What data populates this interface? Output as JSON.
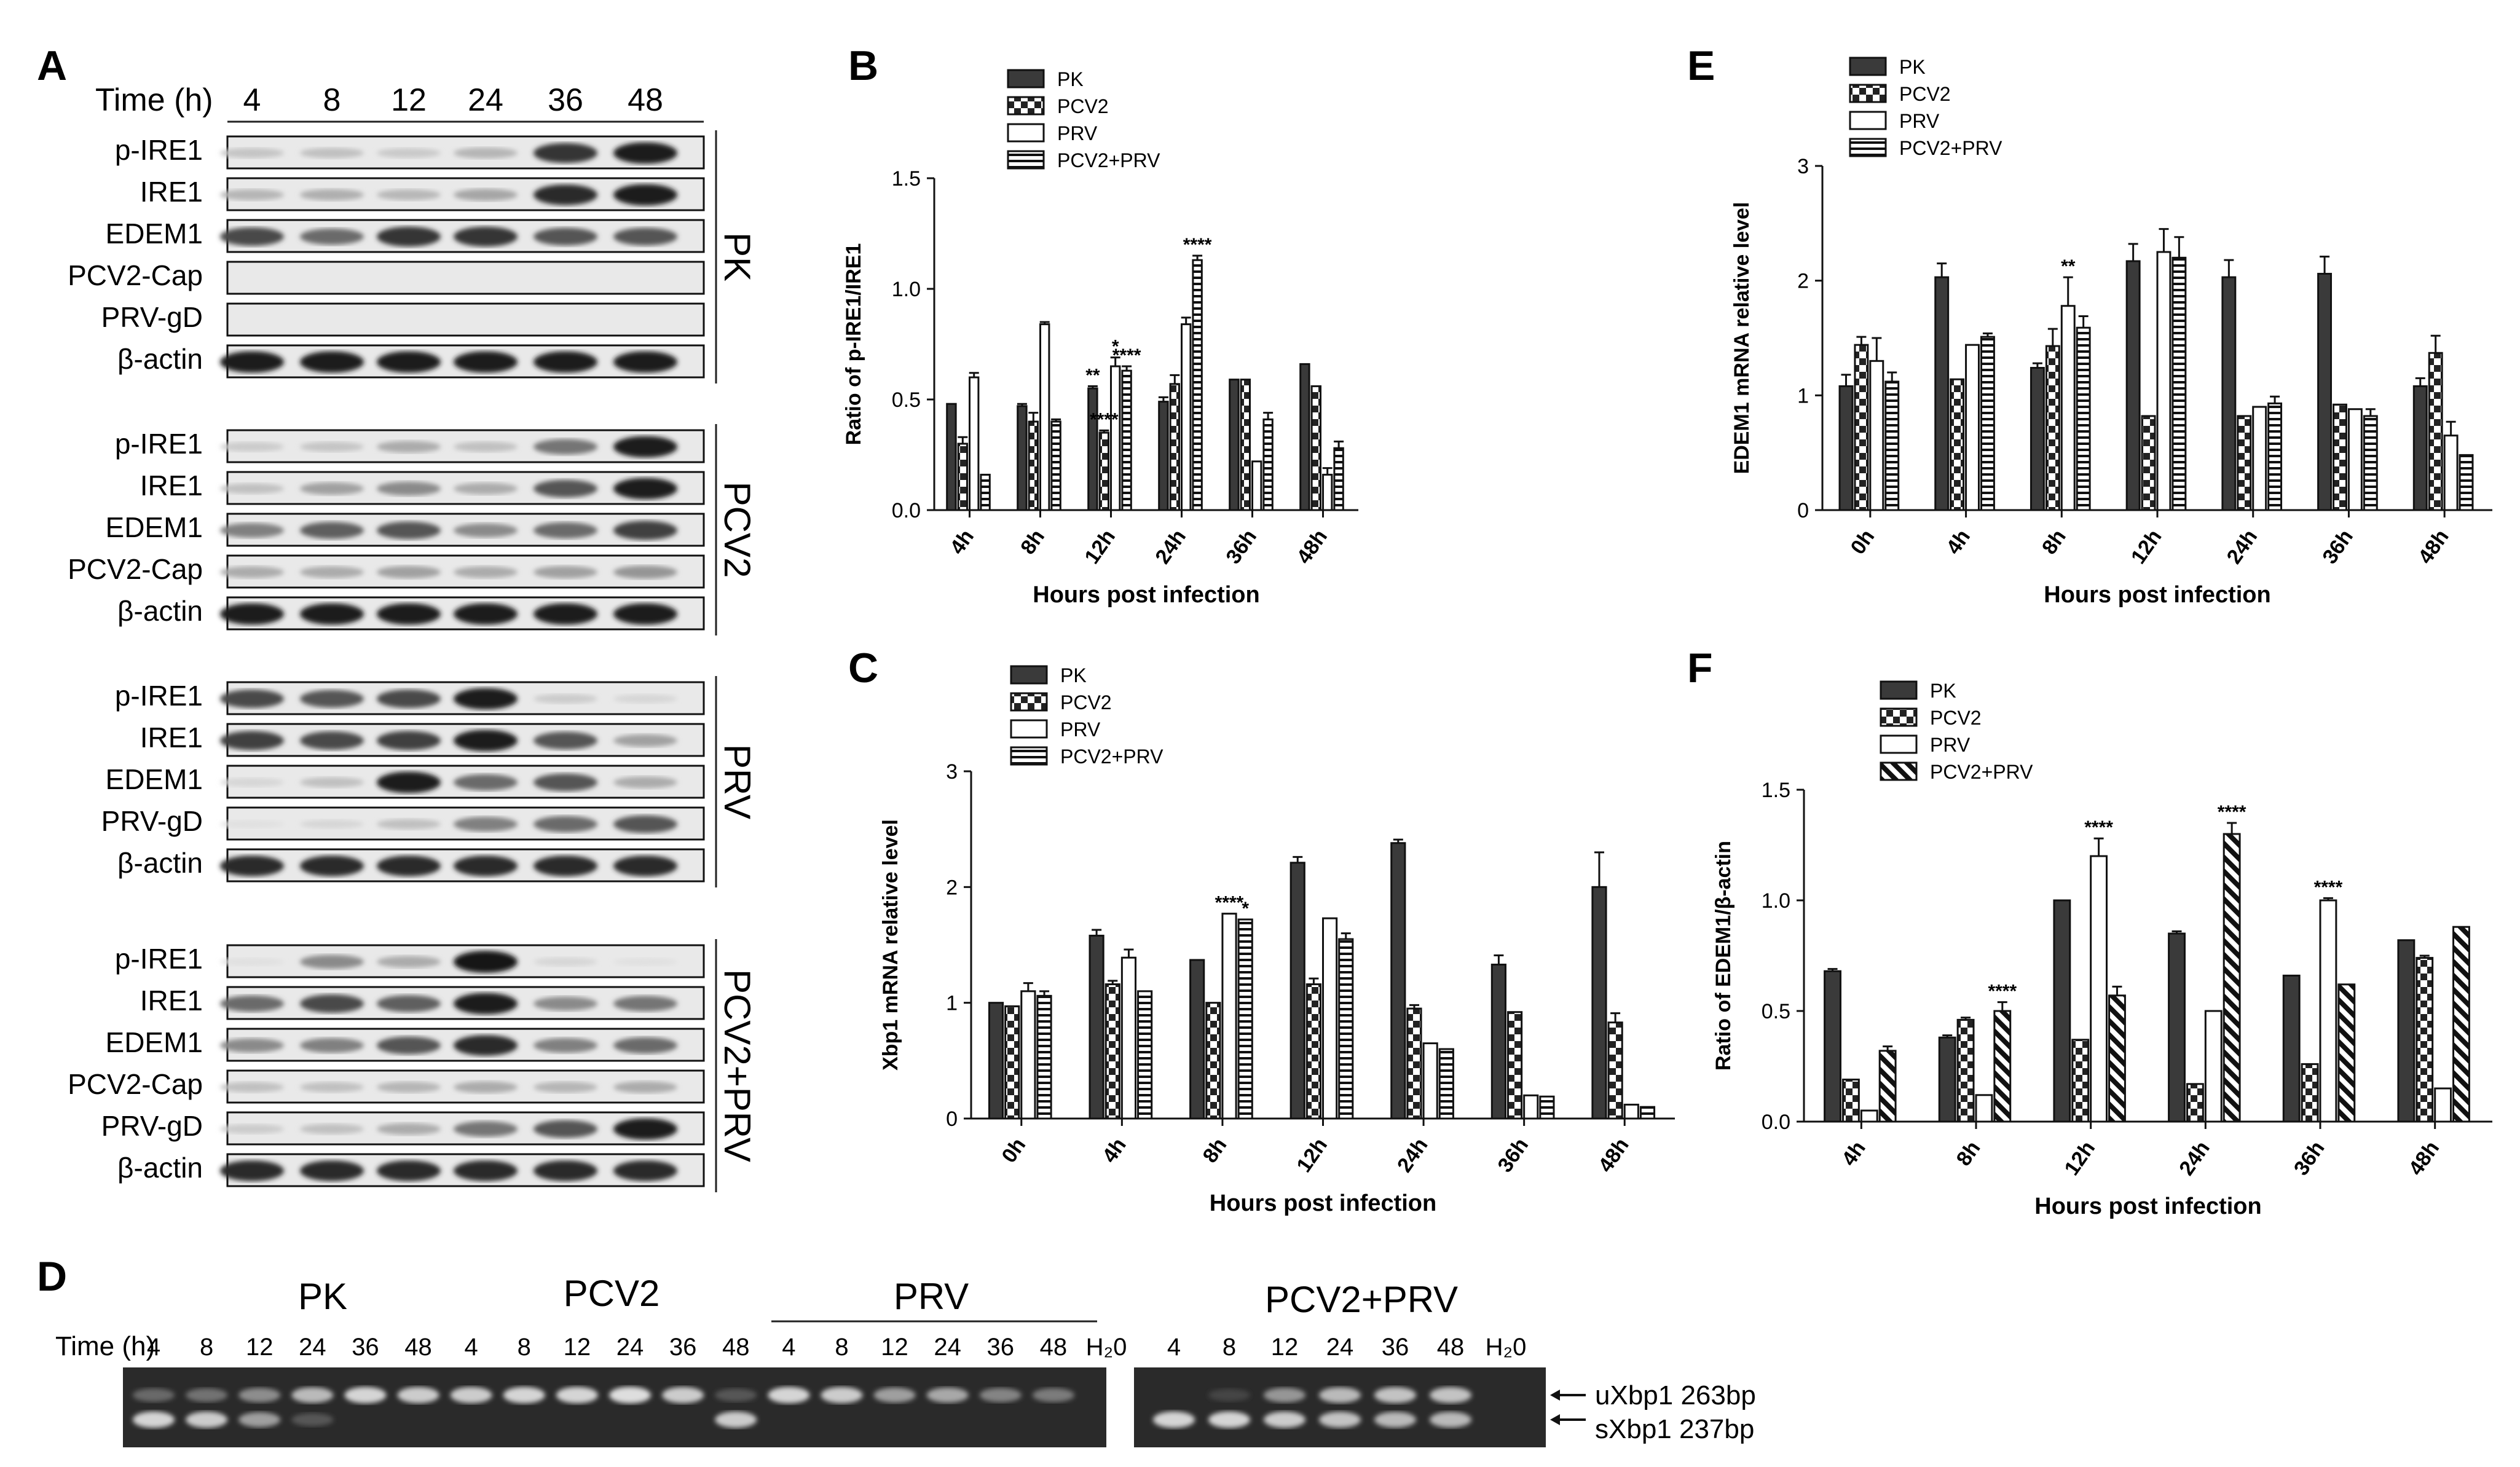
{
  "panels": {
    "A": {
      "label": "A",
      "time_title": "Time (h)",
      "times": [
        "4",
        "8",
        "12",
        "24",
        "36",
        "48"
      ],
      "groups": [
        {
          "name": "PK",
          "rows": [
            "p-IRE1",
            "IRE1",
            "EDEM1",
            "PCV2-Cap",
            "PRV-gD",
            "β-actin"
          ],
          "intensities": [
            [
              0.18,
              0.2,
              0.16,
              0.25,
              0.85,
              0.95
            ],
            [
              0.25,
              0.28,
              0.24,
              0.32,
              0.9,
              0.95
            ],
            [
              0.75,
              0.6,
              0.85,
              0.85,
              0.7,
              0.7
            ],
            [
              0,
              0,
              0,
              0,
              0,
              0
            ],
            [
              0,
              0,
              0,
              0,
              0,
              0
            ],
            [
              0.95,
              0.95,
              0.95,
              0.95,
              0.95,
              0.95
            ]
          ]
        },
        {
          "name": "PCV2",
          "rows": [
            "p-IRE1",
            "IRE1",
            "EDEM1",
            "PCV2-Cap",
            "β-actin"
          ],
          "intensities": [
            [
              0.15,
              0.18,
              0.3,
              0.2,
              0.55,
              0.95
            ],
            [
              0.2,
              0.35,
              0.45,
              0.3,
              0.7,
              0.95
            ],
            [
              0.5,
              0.65,
              0.7,
              0.45,
              0.6,
              0.8
            ],
            [
              0.3,
              0.3,
              0.35,
              0.3,
              0.35,
              0.4
            ],
            [
              0.95,
              0.95,
              0.95,
              0.95,
              0.95,
              0.95
            ]
          ]
        },
        {
          "name": "PRV",
          "rows": [
            "p-IRE1",
            "IRE1",
            "EDEM1",
            "PRV-gD",
            "β-actin"
          ],
          "intensities": [
            [
              0.75,
              0.7,
              0.75,
              0.95,
              0.15,
              0.1
            ],
            [
              0.8,
              0.75,
              0.8,
              0.95,
              0.7,
              0.35
            ],
            [
              0.1,
              0.2,
              0.95,
              0.6,
              0.7,
              0.3
            ],
            [
              0.05,
              0.1,
              0.2,
              0.5,
              0.6,
              0.7
            ],
            [
              0.9,
              0.9,
              0.9,
              0.9,
              0.9,
              0.9
            ]
          ]
        },
        {
          "name": "PCV2+PRV",
          "rows": [
            "p-IRE1",
            "IRE1",
            "EDEM1",
            "PCV2-Cap",
            "PRV-gD",
            "β-actin"
          ],
          "intensities": [
            [
              0.05,
              0.45,
              0.3,
              0.99,
              0.1,
              0.05
            ],
            [
              0.6,
              0.75,
              0.65,
              0.95,
              0.45,
              0.55
            ],
            [
              0.45,
              0.5,
              0.7,
              0.9,
              0.5,
              0.6
            ],
            [
              0.2,
              0.2,
              0.25,
              0.3,
              0.25,
              0.3
            ],
            [
              0.15,
              0.2,
              0.3,
              0.55,
              0.7,
              0.95
            ],
            [
              0.9,
              0.9,
              0.9,
              0.9,
              0.9,
              0.9
            ]
          ]
        }
      ]
    },
    "B": {
      "label": "B"
    },
    "C": {
      "label": "C"
    },
    "D": {
      "label": "D",
      "time_title": "Time (h)",
      "groups": [
        "PK",
        "PCV2",
        "PRV",
        "PCV2+PRV"
      ],
      "lanes_left": [
        "4",
        "8",
        "12",
        "24",
        "36",
        "48",
        "4",
        "8",
        "12",
        "24",
        "36",
        "48",
        "4",
        "8",
        "12",
        "24",
        "36",
        "48",
        "H₂0"
      ],
      "lanes_right": [
        "4",
        "8",
        "12",
        "24",
        "36",
        "48",
        "H₂0"
      ],
      "lanes_left_u": [
        0.25,
        0.3,
        0.45,
        0.7,
        0.85,
        0.8,
        0.8,
        0.85,
        0.85,
        0.9,
        0.8,
        0.15,
        0.85,
        0.8,
        0.55,
        0.6,
        0.4,
        0.35,
        0
      ],
      "lanes_left_s": [
        0.85,
        0.8,
        0.55,
        0.15,
        0,
        0,
        0,
        0,
        0,
        0,
        0,
        0.8,
        0,
        0,
        0,
        0,
        0,
        0,
        0
      ],
      "lanes_right_u": [
        0,
        0.05,
        0.5,
        0.7,
        0.75,
        0.75,
        0
      ],
      "lanes_right_s": [
        0.85,
        0.85,
        0.8,
        0.75,
        0.7,
        0.7,
        0
      ],
      "marker_u": "uXbp1 263bp",
      "marker_s": "sXbp1 237bp"
    },
    "E": {
      "label": "E"
    },
    "F": {
      "label": "F"
    }
  },
  "colors": {
    "pk": "#3a3a3a",
    "bar_edge": "#111111",
    "gel_bg": "#2a2a2a",
    "band": "#f2f2f2"
  },
  "chart_data": [
    {
      "panel": "B",
      "type": "bar",
      "title": "",
      "xlabel": "Hours post infection",
      "ylabel": "Ratio of p-IRE1/IRE1",
      "ylim": [
        0,
        1.5
      ],
      "yticks": [
        "0.0",
        "0.5",
        "1.0",
        "1.5"
      ],
      "categories": [
        "4h",
        "8h",
        "12h",
        "24h",
        "36h",
        "48h"
      ],
      "series": [
        {
          "name": "PK",
          "pattern": "solid",
          "values": [
            0.48,
            0.47,
            0.55,
            0.49,
            0.59,
            0.66
          ],
          "errors": [
            0,
            0.01,
            0.01,
            0.02,
            0,
            0
          ]
        },
        {
          "name": "PCV2",
          "pattern": "check",
          "values": [
            0.3,
            0.4,
            0.35,
            0.57,
            0.59,
            0.56
          ],
          "errors": [
            0.03,
            0.04,
            0.01,
            0.04,
            0,
            0
          ]
        },
        {
          "name": "PRV",
          "pattern": "open",
          "values": [
            0.6,
            0.84,
            0.65,
            0.84,
            0.22,
            0.16
          ],
          "errors": [
            0.02,
            0.01,
            0.04,
            0.03,
            0,
            0.03
          ]
        },
        {
          "name": "PCV2+PRV",
          "pattern": "hstripe",
          "values": [
            0.16,
            0.4,
            0.63,
            1.13,
            0.41,
            0.28
          ],
          "errors": [
            0,
            0.01,
            0.02,
            0.02,
            0.03,
            0.03
          ]
        }
      ],
      "annotations": [
        {
          "category": 2,
          "series": 0,
          "text": "**"
        },
        {
          "category": 2,
          "series": 1,
          "text": "****"
        },
        {
          "category": 2,
          "series": 2,
          "text": "*"
        },
        {
          "category": 2,
          "series": 3,
          "text": "****"
        },
        {
          "category": 3,
          "series": 3,
          "text": "****"
        }
      ]
    },
    {
      "panel": "C",
      "type": "bar",
      "title": "",
      "xlabel": "Hours post infection",
      "ylabel": "Xbp1 mRNA relative level",
      "ylim": [
        0,
        3
      ],
      "yticks": [
        "0",
        "1",
        "2",
        "3"
      ],
      "categories": [
        "0h",
        "4h",
        "8h",
        "12h",
        "24h",
        "36h",
        "48h"
      ],
      "series": [
        {
          "name": "PK",
          "pattern": "solid",
          "values": [
            1.0,
            1.58,
            1.37,
            2.21,
            2.38,
            1.33,
            2.0
          ],
          "errors": [
            0,
            0.05,
            0,
            0.05,
            0.03,
            0.08,
            0.3
          ]
        },
        {
          "name": "PCV2",
          "pattern": "check",
          "values": [
            0.97,
            1.16,
            1.0,
            1.16,
            0.95,
            0.92,
            0.83
          ],
          "errors": [
            0,
            0.03,
            0,
            0.05,
            0.03,
            0,
            0.08
          ]
        },
        {
          "name": "PRV",
          "pattern": "open",
          "values": [
            1.1,
            1.39,
            1.77,
            1.73,
            0.65,
            0.2,
            0.12
          ],
          "errors": [
            0.07,
            0.07,
            0,
            0,
            0,
            0,
            0
          ]
        },
        {
          "name": "PCV2+PRV",
          "pattern": "hstripe",
          "values": [
            1.06,
            1.1,
            1.72,
            1.55,
            0.6,
            0.19,
            0.1
          ],
          "errors": [
            0.04,
            0,
            0,
            0.05,
            0,
            0,
            0
          ]
        }
      ],
      "annotations": [
        {
          "category": 2,
          "series": 2,
          "text": "****"
        },
        {
          "category": 2,
          "series": 3,
          "text": "*"
        }
      ]
    },
    {
      "panel": "E",
      "type": "bar",
      "title": "",
      "xlabel": "Hours post infection",
      "ylabel": "EDEM1 mRNA relative level",
      "ylim": [
        0,
        3
      ],
      "yticks": [
        "0",
        "1",
        "2",
        "3"
      ],
      "categories": [
        "0h",
        "4h",
        "8h",
        "12h",
        "24h",
        "36h",
        "48h"
      ],
      "series": [
        {
          "name": "PK",
          "pattern": "solid",
          "values": [
            1.08,
            2.03,
            1.24,
            2.17,
            2.03,
            2.06,
            1.08
          ],
          "errors": [
            0.1,
            0.12,
            0.04,
            0.15,
            0.15,
            0.15,
            0.07
          ]
        },
        {
          "name": "PCV2",
          "pattern": "check",
          "values": [
            1.44,
            1.14,
            1.43,
            0.82,
            0.82,
            0.92,
            1.37
          ],
          "errors": [
            0.07,
            0,
            0.15,
            0,
            0,
            0,
            0.15
          ]
        },
        {
          "name": "PRV",
          "pattern": "open",
          "values": [
            1.3,
            1.44,
            1.78,
            2.25,
            0.9,
            0.88,
            0.65
          ],
          "errors": [
            0.2,
            0,
            0.25,
            0.2,
            0,
            0,
            0.12
          ]
        },
        {
          "name": "PCV2+PRV",
          "pattern": "hstripe",
          "values": [
            1.12,
            1.51,
            1.59,
            2.2,
            0.93,
            0.82,
            0.48
          ],
          "errors": [
            0.08,
            0.03,
            0.1,
            0.18,
            0.06,
            0.06,
            0
          ]
        }
      ],
      "annotations": [
        {
          "category": 2,
          "series": 2,
          "text": "**"
        }
      ]
    },
    {
      "panel": "F",
      "type": "bar",
      "title": "",
      "xlabel": "Hours post infection",
      "ylabel": "Ratio of EDEM1/β-actin",
      "ylim": [
        0,
        1.5
      ],
      "yticks": [
        "0.0",
        "0.5",
        "1.0",
        "1.5"
      ],
      "categories": [
        "4h",
        "8h",
        "12h",
        "24h",
        "36h",
        "48h"
      ],
      "series": [
        {
          "name": "PK",
          "pattern": "solid",
          "values": [
            0.68,
            0.38,
            1.0,
            0.85,
            0.66,
            0.82
          ],
          "errors": [
            0.01,
            0.01,
            0,
            0.01,
            0,
            0
          ]
        },
        {
          "name": "PCV2",
          "pattern": "check",
          "values": [
            0.19,
            0.46,
            0.37,
            0.17,
            0.26,
            0.74
          ],
          "errors": [
            0,
            0.01,
            0,
            0,
            0,
            0.01
          ]
        },
        {
          "name": "PRV",
          "pattern": "open",
          "values": [
            0.05,
            0.12,
            1.2,
            0.5,
            1.0,
            0.15
          ],
          "errors": [
            0,
            0,
            0.08,
            0,
            0.01,
            0
          ]
        },
        {
          "name": "PCV2+PRV",
          "pattern": "diag",
          "values": [
            0.32,
            0.5,
            0.57,
            1.3,
            0.62,
            0.88
          ],
          "errors": [
            0.02,
            0.04,
            0.04,
            0.05,
            0,
            0
          ]
        }
      ],
      "annotations": [
        {
          "category": 1,
          "series": 3,
          "text": "****"
        },
        {
          "category": 2,
          "series": 2,
          "text": "****"
        },
        {
          "category": 3,
          "series": 3,
          "text": "****"
        },
        {
          "category": 4,
          "series": 2,
          "text": "****"
        }
      ]
    }
  ]
}
